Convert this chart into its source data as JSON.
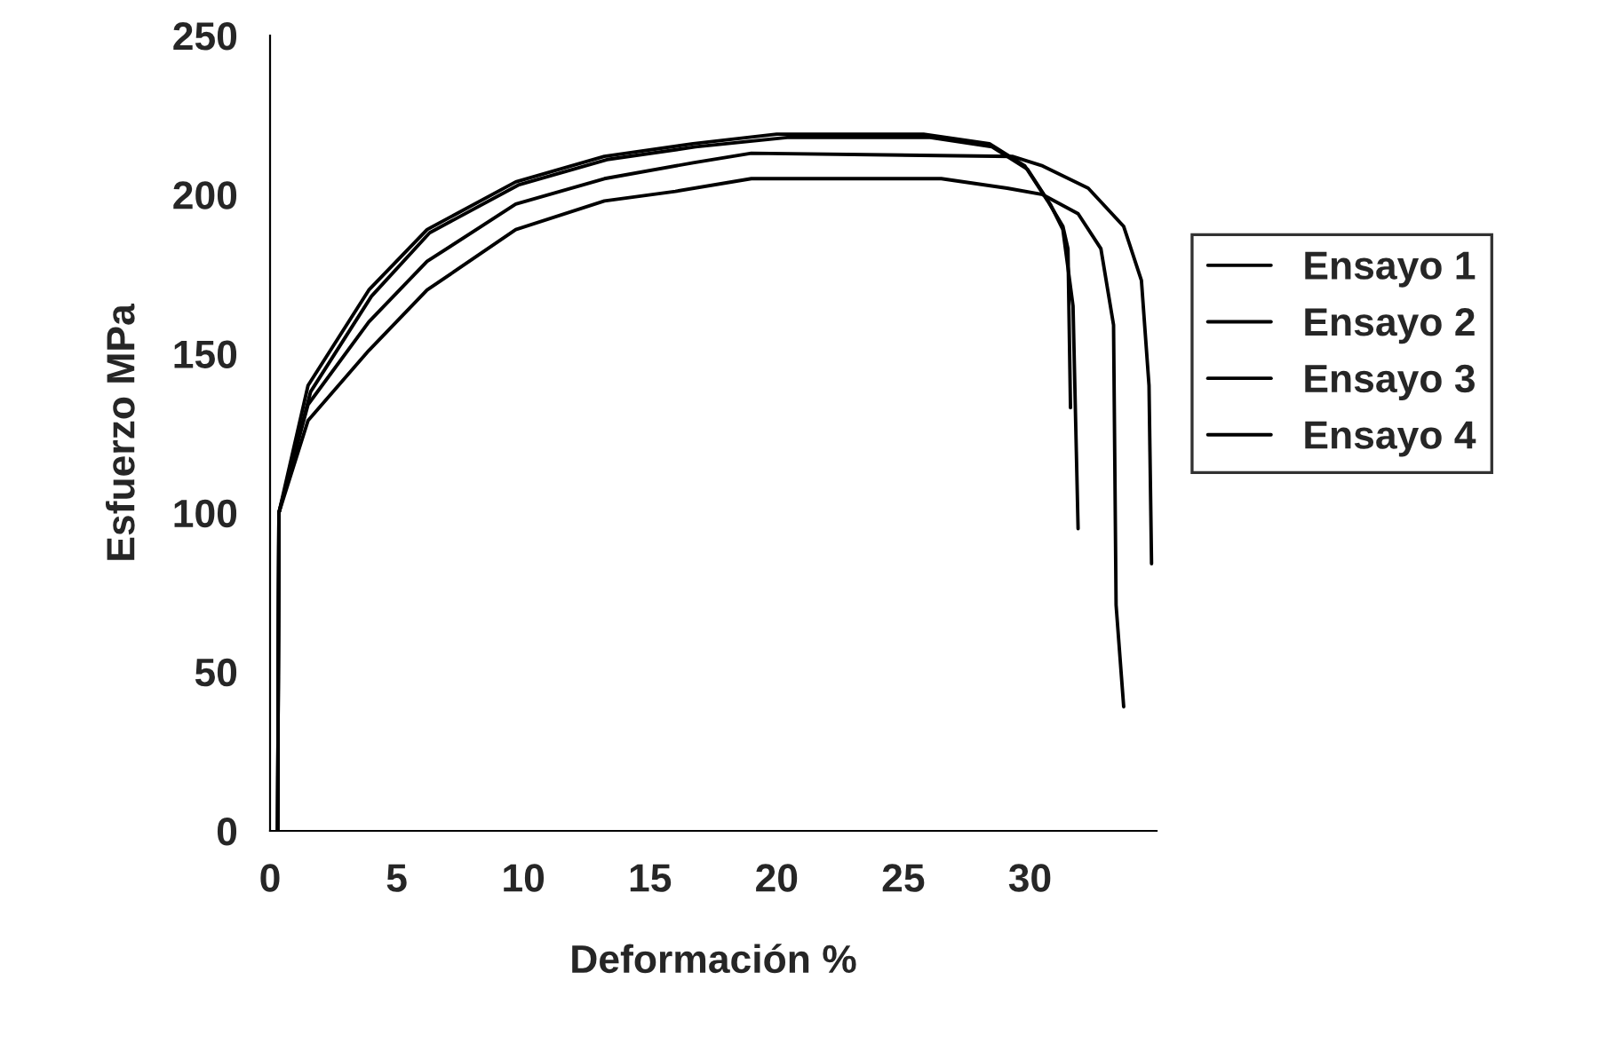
{
  "chart_data": {
    "type": "line",
    "xlabel": "Deformación %",
    "ylabel": "Esfuerzo MPa",
    "xlim": [
      0,
      35
    ],
    "ylim": [
      0,
      250
    ],
    "xticks": [
      0,
      5,
      10,
      15,
      20,
      25,
      30
    ],
    "yticks": [
      0,
      50,
      100,
      150,
      200,
      250
    ],
    "grid": false,
    "legend": "right",
    "marker": "none",
    "line_style": "solid",
    "series": [
      {
        "name": "Ensayo 1",
        "color": "#000000",
        "x": [
          0.3,
          0.35,
          1.5,
          3.9,
          6.2,
          9.7,
          13.2,
          16.7,
          20,
          25.8,
          28.4,
          29.8,
          30.7,
          31.3,
          31.5,
          31.6
        ],
        "values": [
          0,
          100,
          140,
          170,
          189,
          204,
          212,
          216,
          219,
          219,
          216,
          209,
          198,
          190,
          183,
          133
        ]
      },
      {
        "name": "Ensayo 2",
        "color": "#000000",
        "x": [
          0.3,
          0.35,
          1.5,
          3.9,
          6.2,
          9.7,
          13.2,
          16.7,
          19,
          29.3,
          30.5,
          32.3,
          33.7,
          34.4,
          34.7,
          34.8
        ],
        "values": [
          0,
          100,
          134,
          160,
          179,
          197,
          205,
          210,
          213,
          212,
          209,
          202,
          190,
          173,
          140,
          84
        ]
      },
      {
        "name": "Ensayo 3",
        "color": "#000000",
        "x": [
          0.3,
          0.35,
          1.5,
          3.9,
          6.2,
          9.7,
          13.2,
          16,
          19,
          26.5,
          29.1,
          30.5,
          31.9,
          32.8,
          33.3,
          33.4,
          33.7
        ],
        "values": [
          0,
          100,
          129,
          151,
          170,
          189,
          198,
          201,
          205,
          205,
          202,
          200,
          194,
          183,
          159,
          71,
          39
        ]
      },
      {
        "name": "Ensayo 4",
        "color": "#000000",
        "x": [
          0.3,
          0.35,
          1.6,
          4,
          6.3,
          9.8,
          13.3,
          16.8,
          20.5,
          26,
          28.5,
          29.9,
          30.8,
          31.3,
          31.7,
          31.9
        ],
        "values": [
          0,
          100,
          138,
          168,
          188,
          203,
          211,
          215,
          218,
          218,
          215,
          208,
          197,
          189,
          165,
          95
        ]
      }
    ]
  }
}
